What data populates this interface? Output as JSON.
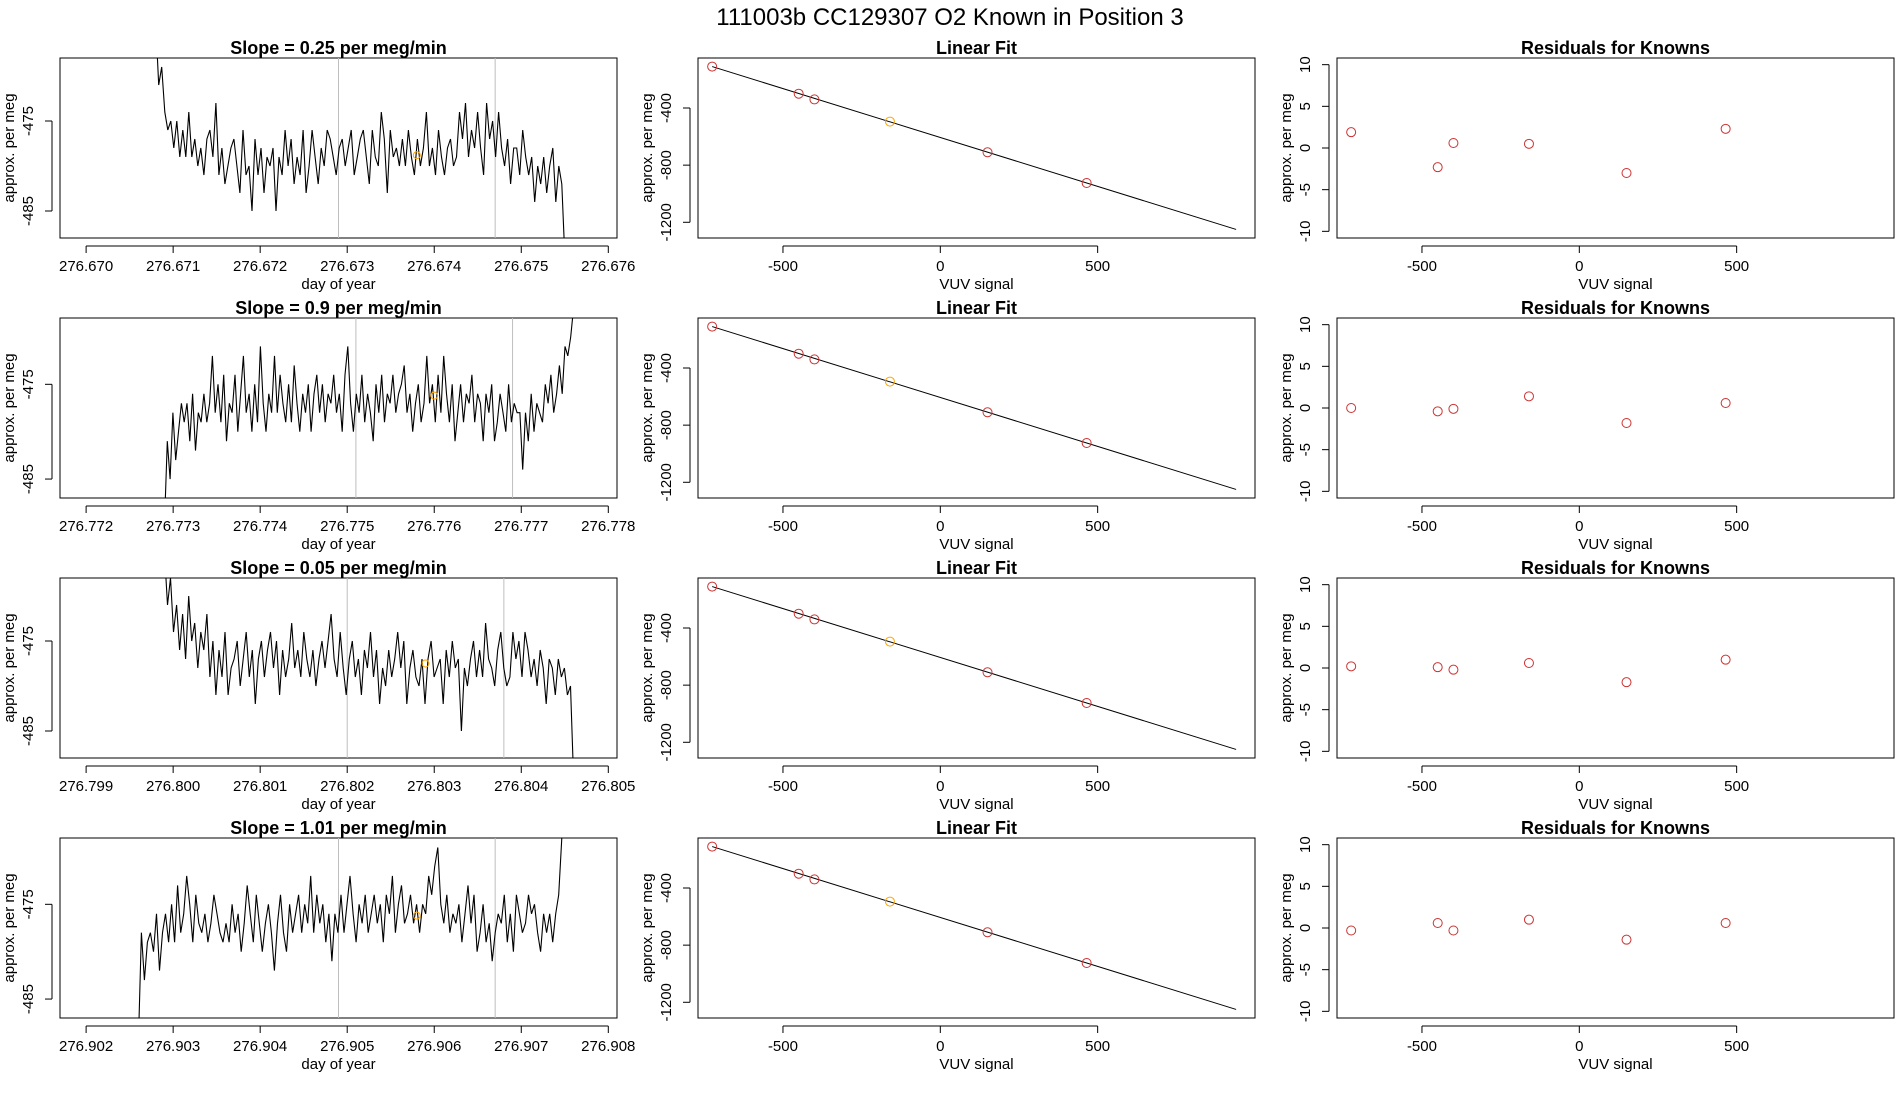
{
  "figure": {
    "title": "111003b      CC129307   O2 Known in Position  3",
    "colors": {
      "frame": "#000000",
      "line": "#000000",
      "vline": "#bebebe",
      "known_point": "#cd3333",
      "position_point": "#ffa500"
    }
  },
  "chart_data": [
    {
      "type": "line",
      "title": "Slope =  0.25  per meg/min",
      "xlabel": "day of year",
      "ylabel": "approx. per meg",
      "xlim": [
        276.6697,
        276.6761
      ],
      "ylim": [
        -488,
        -468
      ],
      "xticks": [
        "276.670",
        "276.671",
        "276.672",
        "276.673",
        "276.674",
        "276.675",
        "276.676"
      ],
      "yticks": [
        "-475",
        "-485"
      ],
      "vlines": [
        276.6729,
        276.6747
      ],
      "highlight_point": {
        "x": 276.6738,
        "y": -478.8
      },
      "x_start": 276.6708,
      "x_end": 276.6755,
      "series": [
        {
          "y": [
            -464,
            -471,
            -469,
            -474,
            -476,
            -475,
            -478,
            -475,
            -479,
            -476,
            -479,
            -474,
            -479,
            -477,
            -480,
            -478,
            -481,
            -477,
            -476,
            -479,
            -473,
            -481,
            -478,
            -482,
            -480,
            -478,
            -477,
            -480,
            -483,
            -476,
            -481,
            -480,
            -485,
            -477,
            -481,
            -478,
            -483,
            -479,
            -480,
            -478,
            -485,
            -479,
            -481,
            -476,
            -480,
            -477,
            -482,
            -479,
            -481,
            -476,
            -483,
            -480,
            -476,
            -479,
            -482,
            -478,
            -480,
            -476,
            -477,
            -479,
            -481,
            -478,
            -477,
            -480,
            -478,
            -476,
            -481,
            -479,
            -477,
            -476,
            -479,
            -482,
            -476,
            -479,
            -480,
            -474,
            -477,
            -483,
            -476,
            -479,
            -478,
            -480,
            -477,
            -480,
            -476,
            -479,
            -481,
            -477,
            -480,
            -478,
            -474,
            -480,
            -478,
            -481,
            -476,
            -479,
            -481,
            -478,
            -477,
            -480,
            -479,
            -474,
            -477,
            -473,
            -479,
            -476,
            -478,
            -474,
            -478,
            -481,
            -473,
            -477,
            -475,
            -479,
            -474,
            -478,
            -480,
            -477,
            -482,
            -478,
            -478,
            -481,
            -476,
            -479,
            -481,
            -479,
            -484,
            -480,
            -482,
            -479,
            -483,
            -480,
            -478,
            -484,
            -480,
            -482,
            -490
          ]
        }
      ]
    },
    {
      "type": "scatter",
      "title": "Linear Fit",
      "xlabel": "VUV signal",
      "ylabel": "approx. per meg",
      "xlim": [
        -770,
        1000
      ],
      "ylim": [
        -1310,
        -50
      ],
      "xticks": [
        -500,
        0,
        500
      ],
      "yticks": [
        -400,
        -800,
        -1200
      ],
      "fit_line": {
        "x": [
          -725,
          940
        ],
        "y": [
          -110,
          -1250
        ]
      },
      "points": {
        "x": [
          -725,
          -450,
          -400,
          -160,
          150,
          465
        ],
        "y": [
          -110,
          -300,
          -340,
          -495,
          -710,
          -925
        ]
      },
      "highlight_index": 3
    },
    {
      "type": "scatter",
      "title": "Residuals for Knowns",
      "xlabel": "VUV signal",
      "ylabel": "approx. per meg",
      "xlim": [
        -770,
        1000
      ],
      "ylim": [
        -10.8,
        10.8
      ],
      "xticks": [
        -500,
        0,
        500
      ],
      "yticks": [
        10,
        5,
        0,
        -5,
        -10
      ],
      "points": {
        "x": [
          -725,
          -450,
          -400,
          -160,
          150,
          465
        ],
        "y": [
          1.9,
          -2.3,
          0.6,
          0.5,
          -3.0,
          2.3
        ]
      }
    },
    {
      "type": "line",
      "title": "Slope =  0.9  per meg/min",
      "xlabel": "day of year",
      "ylabel": "approx. per meg",
      "xlim": [
        276.7717,
        276.7781
      ],
      "ylim": [
        -487,
        -468
      ],
      "xticks": [
        "276.772",
        "276.773",
        "276.774",
        "276.775",
        "276.776",
        "276.777",
        "276.778"
      ],
      "yticks": [
        "-475",
        "-485"
      ],
      "vlines": [
        276.7751,
        276.7769
      ],
      "highlight_point": {
        "x": 276.776,
        "y": -476.2
      },
      "x_start": 276.7729,
      "x_end": 276.7776,
      "series": [
        {
          "y": [
            -490,
            -481,
            -485,
            -478,
            -483,
            -480,
            -477,
            -479,
            -477,
            -481,
            -476,
            -482,
            -478,
            -479,
            -476,
            -479,
            -477,
            -472,
            -478,
            -475,
            -479,
            -474,
            -481,
            -477,
            -478,
            -474,
            -480,
            -476,
            -472,
            -478,
            -476,
            -480,
            -475,
            -479,
            -471,
            -477,
            -480,
            -476,
            -478,
            -472,
            -478,
            -474,
            -477,
            -479,
            -475,
            -479,
            -473,
            -477,
            -480,
            -476,
            -478,
            -475,
            -480,
            -476,
            -474,
            -478,
            -475,
            -479,
            -476,
            -477,
            -474,
            -478,
            -476,
            -480,
            -474,
            -471,
            -477,
            -480,
            -476,
            -478,
            -474,
            -479,
            -476,
            -478,
            -481,
            -475,
            -478,
            -474,
            -479,
            -476,
            -477,
            -474,
            -478,
            -476,
            -475,
            -473,
            -478,
            -476,
            -480,
            -477,
            -475,
            -479,
            -477,
            -472,
            -477,
            -475,
            -479,
            -474,
            -478,
            -472,
            -476,
            -479,
            -475,
            -481,
            -478,
            -475,
            -479,
            -476,
            -477,
            -474,
            -479,
            -476,
            -477,
            -481,
            -476,
            -478,
            -475,
            -481,
            -479,
            -476,
            -478,
            -480,
            -475,
            -479,
            -477,
            -478,
            -478,
            -484,
            -478,
            -481,
            -476,
            -480,
            -477,
            -478,
            -479,
            -475,
            -477,
            -474,
            -478,
            -476,
            -473,
            -476,
            -471,
            -472,
            -470,
            -467
          ]
        }
      ]
    },
    {
      "type": "scatter",
      "title": "Linear Fit",
      "xlabel": "VUV signal",
      "ylabel": "approx. per meg",
      "xlim": [
        -770,
        1000
      ],
      "ylim": [
        -1310,
        -50
      ],
      "xticks": [
        -500,
        0,
        500
      ],
      "yticks": [
        -400,
        -800,
        -1200
      ],
      "fit_line": {
        "x": [
          -725,
          940
        ],
        "y": [
          -110,
          -1250
        ]
      },
      "points": {
        "x": [
          -725,
          -450,
          -400,
          -160,
          150,
          465
        ],
        "y": [
          -110,
          -300,
          -340,
          -495,
          -710,
          -925
        ]
      },
      "highlight_index": 3
    },
    {
      "type": "scatter",
      "title": "Residuals for Knowns",
      "xlabel": "VUV signal",
      "ylabel": "approx. per meg",
      "xlim": [
        -770,
        1000
      ],
      "ylim": [
        -10.8,
        10.8
      ],
      "xticks": [
        -500,
        0,
        500
      ],
      "yticks": [
        10,
        5,
        0,
        -5,
        -10
      ],
      "points": {
        "x": [
          -725,
          -450,
          -400,
          -160,
          150,
          465
        ],
        "y": [
          0.0,
          -0.4,
          -0.1,
          1.4,
          -1.8,
          0.6
        ]
      }
    },
    {
      "type": "line",
      "title": "Slope =  0.05  per meg/min",
      "xlabel": "day of year",
      "ylabel": "approx. per meg",
      "xlim": [
        276.7987,
        276.8051
      ],
      "ylim": [
        -488,
        -468
      ],
      "xticks": [
        "276.799",
        "276.800",
        "276.801",
        "276.802",
        "276.803",
        "276.804",
        "276.805"
      ],
      "yticks": [
        "-475",
        "-485"
      ],
      "vlines": [
        276.802,
        276.8038
      ],
      "highlight_point": {
        "x": 276.8029,
        "y": -477.5
      },
      "x_start": 276.7999,
      "x_end": 276.8046,
      "series": [
        {
          "y": [
            -465,
            -471,
            -468,
            -474,
            -471,
            -476,
            -472,
            -477,
            -470,
            -475,
            -473,
            -478,
            -474,
            -476,
            -472,
            -479,
            -475,
            -481,
            -476,
            -479,
            -474,
            -481,
            -478,
            -477,
            -475,
            -480,
            -477,
            -474,
            -479,
            -476,
            -482,
            -477,
            -475,
            -479,
            -476,
            -474,
            -478,
            -475,
            -481,
            -476,
            -479,
            -477,
            -473,
            -478,
            -476,
            -479,
            -474,
            -477,
            -479,
            -476,
            -480,
            -477,
            -475,
            -478,
            -475,
            -472,
            -477,
            -479,
            -474,
            -478,
            -481,
            -477,
            -475,
            -479,
            -477,
            -481,
            -476,
            -478,
            -474,
            -479,
            -476,
            -482,
            -478,
            -480,
            -476,
            -479,
            -477,
            -474,
            -478,
            -475,
            -482,
            -478,
            -476,
            -479,
            -480,
            -477,
            -482,
            -477,
            -475,
            -479,
            -478,
            -477,
            -482,
            -476,
            -479,
            -475,
            -478,
            -477,
            -485,
            -478,
            -480,
            -477,
            -475,
            -479,
            -476,
            -479,
            -473,
            -477,
            -478,
            -480,
            -476,
            -474,
            -478,
            -480,
            -479,
            -474,
            -477,
            -475,
            -479,
            -474,
            -476,
            -479,
            -477,
            -480,
            -476,
            -478,
            -482,
            -477,
            -478,
            -481,
            -477,
            -479,
            -478,
            -481,
            -480,
            -490
          ]
        }
      ]
    },
    {
      "type": "scatter",
      "title": "Linear Fit",
      "xlabel": "VUV signal",
      "ylabel": "approx. per meg",
      "xlim": [
        -770,
        1000
      ],
      "ylim": [
        -1310,
        -50
      ],
      "xticks": [
        -500,
        0,
        500
      ],
      "yticks": [
        -400,
        -800,
        -1200
      ],
      "fit_line": {
        "x": [
          -725,
          940
        ],
        "y": [
          -110,
          -1250
        ]
      },
      "points": {
        "x": [
          -725,
          -450,
          -400,
          -160,
          150,
          465
        ],
        "y": [
          -110,
          -300,
          -340,
          -495,
          -710,
          -925
        ]
      },
      "highlight_index": 3
    },
    {
      "type": "scatter",
      "title": "Residuals for Knowns",
      "xlabel": "VUV signal",
      "ylabel": "approx. per meg",
      "xlim": [
        -770,
        1000
      ],
      "ylim": [
        -10.8,
        10.8
      ],
      "xticks": [
        -500,
        0,
        500
      ],
      "yticks": [
        10,
        5,
        0,
        -5,
        -10
      ],
      "points": {
        "x": [
          -725,
          -450,
          -400,
          -160,
          150,
          465
        ],
        "y": [
          0.2,
          0.1,
          -0.2,
          0.6,
          -1.7,
          1.0
        ]
      }
    },
    {
      "type": "line",
      "title": "Slope =  1.01  per meg/min",
      "xlabel": "day of year",
      "ylabel": "approx. per meg",
      "xlim": [
        276.9017,
        276.9081
      ],
      "ylim": [
        -487,
        -468
      ],
      "xticks": [
        "276.902",
        "276.903",
        "276.904",
        "276.905",
        "276.906",
        "276.907",
        "276.908"
      ],
      "yticks": [
        "-475",
        "-485"
      ],
      "vlines": [
        276.9049,
        276.9067
      ],
      "highlight_point": {
        "x": 276.9058,
        "y": -476.2
      },
      "x_start": 276.9026,
      "x_end": 276.9075,
      "series": [
        {
          "y": [
            -490,
            -478,
            -483,
            -479,
            -478,
            -480,
            -476,
            -482,
            -478,
            -476,
            -479,
            -475,
            -479,
            -473,
            -478,
            -476,
            -472,
            -475,
            -479,
            -474,
            -477,
            -478,
            -476,
            -479,
            -477,
            -474,
            -476,
            -478,
            -479,
            -477,
            -479,
            -475,
            -478,
            -476,
            -480,
            -477,
            -473,
            -476,
            -479,
            -474,
            -477,
            -480,
            -477,
            -475,
            -478,
            -482,
            -477,
            -474,
            -478,
            -480,
            -475,
            -478,
            -476,
            -474,
            -478,
            -475,
            -477,
            -472,
            -478,
            -474,
            -477,
            -475,
            -479,
            -476,
            -481,
            -476,
            -478,
            -474,
            -478,
            -475,
            -472,
            -476,
            -479,
            -475,
            -477,
            -474,
            -478,
            -476,
            -474,
            -477,
            -475,
            -479,
            -474,
            -476,
            -472,
            -478,
            -475,
            -473,
            -477,
            -476,
            -474,
            -477,
            -475,
            -478,
            -475,
            -476,
            -472,
            -474,
            -471,
            -469,
            -475,
            -477,
            -474,
            -478,
            -476,
            -477,
            -475,
            -479,
            -476,
            -473,
            -477,
            -474,
            -480,
            -478,
            -475,
            -479,
            -477,
            -481,
            -478,
            -476,
            -477,
            -474,
            -479,
            -476,
            -480,
            -474,
            -476,
            -478,
            -477,
            -474,
            -476,
            -475,
            -478,
            -480,
            -476,
            -478,
            -476,
            -479,
            -476,
            -474,
            -468,
            -463
          ]
        }
      ]
    },
    {
      "type": "scatter",
      "title": "Linear Fit",
      "xlabel": "VUV signal",
      "ylabel": "approx. per meg",
      "xlim": [
        -770,
        1000
      ],
      "ylim": [
        -1310,
        -50
      ],
      "xticks": [
        -500,
        0,
        500
      ],
      "yticks": [
        -400,
        -800,
        -1200
      ],
      "fit_line": {
        "x": [
          -725,
          940
        ],
        "y": [
          -110,
          -1250
        ]
      },
      "points": {
        "x": [
          -725,
          -450,
          -400,
          -160,
          150,
          465
        ],
        "y": [
          -110,
          -300,
          -340,
          -495,
          -710,
          -925
        ]
      },
      "highlight_index": 3
    },
    {
      "type": "scatter",
      "title": "Residuals for Knowns",
      "xlabel": "VUV signal",
      "ylabel": "approx. per meg",
      "xlim": [
        -770,
        1000
      ],
      "ylim": [
        -10.8,
        10.8
      ],
      "xticks": [
        -500,
        0,
        500
      ],
      "yticks": [
        10,
        5,
        0,
        -5,
        -10
      ],
      "points": {
        "x": [
          -725,
          -450,
          -400,
          -160,
          150,
          465
        ],
        "y": [
          -0.3,
          0.6,
          -0.3,
          1.0,
          -1.4,
          0.6
        ]
      }
    }
  ]
}
